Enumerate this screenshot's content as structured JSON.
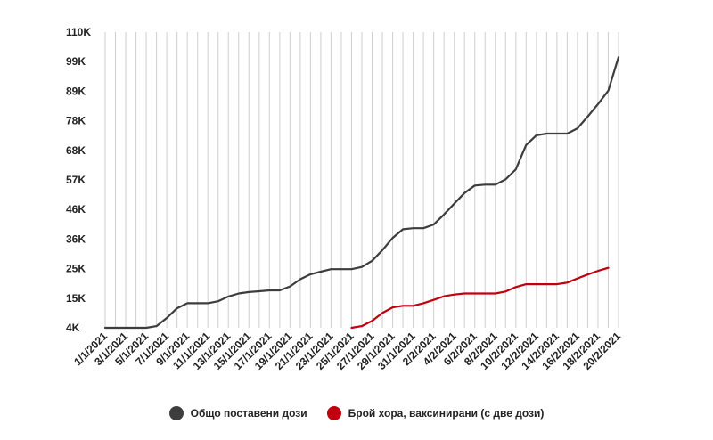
{
  "chart_data": {
    "type": "line",
    "x_labels": [
      "1/1/2021",
      "3/1/2021",
      "5/1/2021",
      "7/1/2021",
      "9/1/2021",
      "11/1/2021",
      "13/1/2021",
      "15/1/2021",
      "17/1/2021",
      "19/1/2021",
      "21/1/2021",
      "23/1/2021",
      "25/1/2021",
      "27/1/2021",
      "29/1/2021",
      "31/1/2021",
      "2/2/2021",
      "4/2/2021",
      "6/2/2021",
      "8/2/2021",
      "10/2/2021",
      "12/2/2021",
      "14/2/2021",
      "16/2/2021",
      "18/2/2021",
      "20/2/2021"
    ],
    "y_ticks": [
      "4K",
      "15K",
      "25K",
      "36K",
      "46K",
      "57K",
      "68K",
      "78K",
      "89K",
      "99K",
      "110K"
    ],
    "ylim": [
      4000,
      110000
    ],
    "grid": true,
    "legend_position": "bottom",
    "series": [
      {
        "name": "Общо поставени дози",
        "color": "#3d3d3d",
        "points": [
          {
            "x": "1/1/2021",
            "y": 4000
          },
          {
            "x": "2/1/2021",
            "y": 4000
          },
          {
            "x": "3/1/2021",
            "y": 4000
          },
          {
            "x": "4/1/2021",
            "y": 4000
          },
          {
            "x": "5/1/2021",
            "y": 4000
          },
          {
            "x": "6/1/2021",
            "y": 4600
          },
          {
            "x": "7/1/2021",
            "y": 7500
          },
          {
            "x": "8/1/2021",
            "y": 11000
          },
          {
            "x": "9/1/2021",
            "y": 12800
          },
          {
            "x": "10/1/2021",
            "y": 12800
          },
          {
            "x": "11/1/2021",
            "y": 12800
          },
          {
            "x": "12/1/2021",
            "y": 13500
          },
          {
            "x": "13/1/2021",
            "y": 15200
          },
          {
            "x": "14/1/2021",
            "y": 16300
          },
          {
            "x": "15/1/2021",
            "y": 16800
          },
          {
            "x": "16/1/2021",
            "y": 17100
          },
          {
            "x": "17/1/2021",
            "y": 17400
          },
          {
            "x": "18/1/2021",
            "y": 17400
          },
          {
            "x": "19/1/2021",
            "y": 18800
          },
          {
            "x": "20/1/2021",
            "y": 21400
          },
          {
            "x": "21/1/2021",
            "y": 23200
          },
          {
            "x": "22/1/2021",
            "y": 24100
          },
          {
            "x": "23/1/2021",
            "y": 25000
          },
          {
            "x": "24/1/2021",
            "y": 25000
          },
          {
            "x": "25/1/2021",
            "y": 25000
          },
          {
            "x": "26/1/2021",
            "y": 25800
          },
          {
            "x": "27/1/2021",
            "y": 28000
          },
          {
            "x": "28/1/2021",
            "y": 31800
          },
          {
            "x": "29/1/2021",
            "y": 36200
          },
          {
            "x": "30/1/2021",
            "y": 39300
          },
          {
            "x": "31/1/2021",
            "y": 39700
          },
          {
            "x": "1/2/2021",
            "y": 39700
          },
          {
            "x": "2/2/2021",
            "y": 41000
          },
          {
            "x": "3/2/2021",
            "y": 44600
          },
          {
            "x": "4/2/2021",
            "y": 48500
          },
          {
            "x": "5/2/2021",
            "y": 52300
          },
          {
            "x": "6/2/2021",
            "y": 55000
          },
          {
            "x": "7/2/2021",
            "y": 55300
          },
          {
            "x": "8/2/2021",
            "y": 55300
          },
          {
            "x": "9/2/2021",
            "y": 57200
          },
          {
            "x": "10/2/2021",
            "y": 60800
          },
          {
            "x": "11/2/2021",
            "y": 69500
          },
          {
            "x": "12/2/2021",
            "y": 73000
          },
          {
            "x": "13/2/2021",
            "y": 73600
          },
          {
            "x": "14/2/2021",
            "y": 73600
          },
          {
            "x": "15/2/2021",
            "y": 73600
          },
          {
            "x": "16/2/2021",
            "y": 75500
          },
          {
            "x": "17/2/2021",
            "y": 79700
          },
          {
            "x": "18/2/2021",
            "y": 84200
          },
          {
            "x": "19/2/2021",
            "y": 89000
          },
          {
            "x": "20/2/2021",
            "y": 101000
          }
        ]
      },
      {
        "name": "Брой хора, ваксинирани (с две дози)",
        "color": "#c0000e",
        "points": [
          {
            "x": "25/1/2021",
            "y": 4000
          },
          {
            "x": "26/1/2021",
            "y": 4600
          },
          {
            "x": "27/1/2021",
            "y": 6500
          },
          {
            "x": "28/1/2021",
            "y": 9300
          },
          {
            "x": "29/1/2021",
            "y": 11300
          },
          {
            "x": "30/1/2021",
            "y": 11900
          },
          {
            "x": "31/1/2021",
            "y": 11900
          },
          {
            "x": "1/2/2021",
            "y": 12800
          },
          {
            "x": "2/2/2021",
            "y": 14000
          },
          {
            "x": "3/2/2021",
            "y": 15300
          },
          {
            "x": "4/2/2021",
            "y": 15900
          },
          {
            "x": "5/2/2021",
            "y": 16300
          },
          {
            "x": "6/2/2021",
            "y": 16300
          },
          {
            "x": "7/2/2021",
            "y": 16300
          },
          {
            "x": "8/2/2021",
            "y": 16300
          },
          {
            "x": "9/2/2021",
            "y": 17000
          },
          {
            "x": "10/2/2021",
            "y": 18600
          },
          {
            "x": "11/2/2021",
            "y": 19600
          },
          {
            "x": "12/2/2021",
            "y": 19600
          },
          {
            "x": "13/2/2021",
            "y": 19600
          },
          {
            "x": "14/2/2021",
            "y": 19600
          },
          {
            "x": "15/2/2021",
            "y": 20200
          },
          {
            "x": "16/2/2021",
            "y": 21700
          },
          {
            "x": "17/2/2021",
            "y": 23100
          },
          {
            "x": "18/2/2021",
            "y": 24400
          },
          {
            "x": "19/2/2021",
            "y": 25500
          }
        ]
      }
    ]
  }
}
